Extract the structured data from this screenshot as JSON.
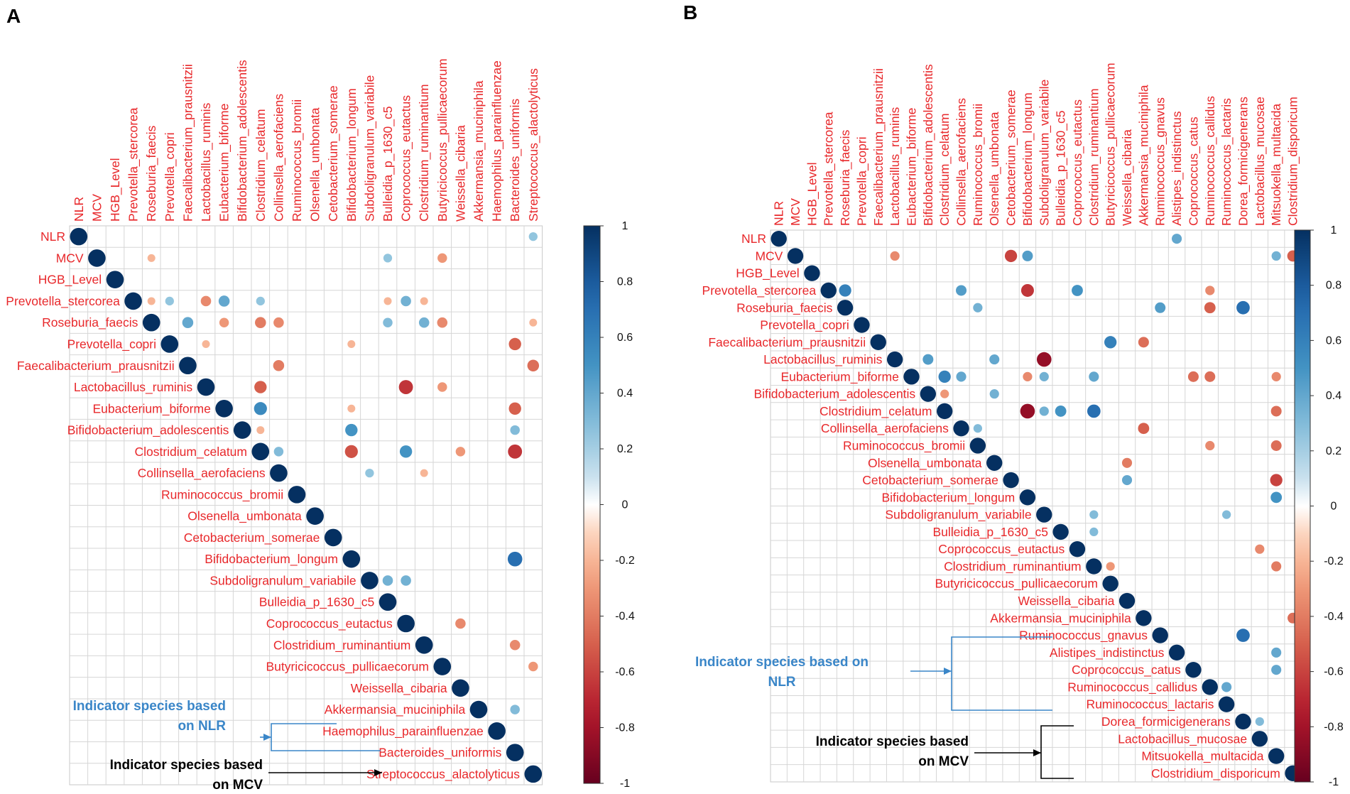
{
  "panels": [
    {
      "panel_label": "A",
      "chart_data": {
        "type": "correlogram",
        "title": "",
        "labels": [
          "NLR",
          "MCV",
          "HGB_Level",
          "Prevotella_stercorea",
          "Roseburia_faecis",
          "Prevotella_copri",
          "Faecalibacterium_prausnitzii",
          "Lactobacillus_ruminis",
          "Eubacterium_biforme",
          "Bifidobacterium_adolescentis",
          "Clostridium_celatum",
          "Collinsella_aerofaciens",
          "Ruminococcus_bromii",
          "Olsenella_umbonata",
          "Cetobacterium_somerae",
          "Bifidobacterium_longum",
          "Subdoligranulum_variabile",
          "Bulleidia_p_1630_c5",
          "Coprococcus_eutactus",
          "Clostridium_ruminantium",
          "Butyricicoccus_pullicaecorum",
          "Weissella_cibaria",
          "Akkermansia_muciniphila",
          "Haemophilus_parainfluenzae",
          "Bacteroides_uniformis",
          "Streptococcus_alactolyticus"
        ],
        "correlations": [
          [
            0,
            25,
            0.25
          ],
          [
            1,
            4,
            -0.2
          ],
          [
            1,
            17,
            0.25
          ],
          [
            1,
            20,
            -0.3
          ],
          [
            3,
            4,
            -0.2
          ],
          [
            3,
            5,
            0.25
          ],
          [
            3,
            7,
            -0.35
          ],
          [
            3,
            8,
            0.4
          ],
          [
            3,
            10,
            0.25
          ],
          [
            3,
            17,
            -0.2
          ],
          [
            3,
            18,
            0.35
          ],
          [
            3,
            19,
            -0.2
          ],
          [
            4,
            6,
            0.4
          ],
          [
            4,
            8,
            -0.3
          ],
          [
            4,
            10,
            -0.4
          ],
          [
            4,
            11,
            -0.35
          ],
          [
            4,
            17,
            0.3
          ],
          [
            4,
            19,
            0.35
          ],
          [
            4,
            20,
            -0.35
          ],
          [
            4,
            25,
            -0.2
          ],
          [
            5,
            7,
            -0.2
          ],
          [
            5,
            15,
            -0.2
          ],
          [
            5,
            24,
            -0.5
          ],
          [
            6,
            11,
            -0.4
          ],
          [
            6,
            25,
            -0.45
          ],
          [
            7,
            10,
            -0.5
          ],
          [
            7,
            18,
            -0.65
          ],
          [
            7,
            20,
            -0.3
          ],
          [
            8,
            10,
            0.55
          ],
          [
            8,
            15,
            -0.2
          ],
          [
            8,
            24,
            -0.5
          ],
          [
            9,
            10,
            -0.2
          ],
          [
            9,
            15,
            0.5
          ],
          [
            9,
            24,
            0.3
          ],
          [
            10,
            11,
            0.3
          ],
          [
            10,
            15,
            -0.55
          ],
          [
            10,
            18,
            0.5
          ],
          [
            10,
            21,
            -0.3
          ],
          [
            10,
            24,
            -0.65
          ],
          [
            11,
            16,
            0.25
          ],
          [
            11,
            19,
            -0.2
          ],
          [
            15,
            24,
            0.7
          ],
          [
            16,
            17,
            0.35
          ],
          [
            16,
            18,
            0.35
          ],
          [
            18,
            21,
            -0.35
          ],
          [
            19,
            24,
            -0.35
          ],
          [
            20,
            25,
            -0.3
          ],
          [
            22,
            24,
            0.3
          ]
        ],
        "colorbar": {
          "min": -1,
          "max": 1,
          "ticks": [
            "1",
            "0.8",
            "0.6",
            "0.4",
            "0.2",
            "0",
            "-0.2",
            "-0.4",
            "-0.6",
            "-0.8",
            "-1"
          ]
        }
      },
      "annotations": [
        {
          "lines": [
            "Indicator species based",
            "on NLR"
          ],
          "color": "#3a86c8"
        },
        {
          "lines": [
            "Indicator species based",
            "on MCV"
          ],
          "color": "#000000"
        }
      ]
    },
    {
      "panel_label": "B",
      "chart_data": {
        "type": "correlogram",
        "title": "",
        "labels": [
          "NLR",
          "MCV",
          "HGB_Level",
          "Prevotella_stercorea",
          "Roseburia_faecis",
          "Prevotella_copri",
          "Faecalibacterium_prausnitzii",
          "Lactobacillus_ruminis",
          "Eubacterium_biforme",
          "Bifidobacterium_adolescentis",
          "Clostridium_celatum",
          "Collinsella_aerofaciens",
          "Ruminococcus_bromii",
          "Olsenella_umbonata",
          "Cetobacterium_somerae",
          "Bifidobacterium_longum",
          "Subdoligranulum_variabile",
          "Bulleidia_p_1630_c5",
          "Coprococcus_eutactus",
          "Clostridium_ruminantium",
          "Butyricicoccus_pullicaecorum",
          "Weissella_cibaria",
          "Akkermansia_muciniphila",
          "Ruminococcus_gnavus",
          "Alistipes_indistinctus",
          "Coprococcus_catus",
          "Ruminococcus_callidus",
          "Ruminococcus_lactaris",
          "Dorea_formicigenerans",
          "Lactobacillus_mucosae",
          "Mitsuokella_multacida",
          "Clostridium_disporicum"
        ],
        "correlations": [
          [
            0,
            24,
            0.4
          ],
          [
            1,
            7,
            -0.35
          ],
          [
            1,
            14,
            -0.6
          ],
          [
            1,
            15,
            0.45
          ],
          [
            1,
            30,
            0.35
          ],
          [
            1,
            31,
            -0.5
          ],
          [
            3,
            4,
            0.6
          ],
          [
            3,
            11,
            0.45
          ],
          [
            3,
            15,
            -0.65
          ],
          [
            3,
            18,
            0.5
          ],
          [
            3,
            26,
            -0.35
          ],
          [
            4,
            12,
            0.35
          ],
          [
            4,
            23,
            0.45
          ],
          [
            4,
            26,
            -0.5
          ],
          [
            4,
            28,
            0.7
          ],
          [
            6,
            20,
            0.6
          ],
          [
            6,
            22,
            -0.45
          ],
          [
            7,
            9,
            0.45
          ],
          [
            7,
            13,
            0.4
          ],
          [
            7,
            16,
            -0.85
          ],
          [
            8,
            10,
            0.6
          ],
          [
            8,
            11,
            0.4
          ],
          [
            8,
            15,
            -0.35
          ],
          [
            8,
            16,
            0.35
          ],
          [
            8,
            19,
            0.4
          ],
          [
            8,
            25,
            -0.45
          ],
          [
            8,
            26,
            -0.45
          ],
          [
            8,
            30,
            -0.35
          ],
          [
            9,
            10,
            -0.3
          ],
          [
            9,
            13,
            0.35
          ],
          [
            10,
            15,
            -0.85
          ],
          [
            10,
            16,
            0.35
          ],
          [
            10,
            17,
            0.5
          ],
          [
            10,
            19,
            0.7
          ],
          [
            10,
            30,
            -0.45
          ],
          [
            11,
            12,
            0.3
          ],
          [
            11,
            22,
            -0.5
          ],
          [
            12,
            26,
            -0.35
          ],
          [
            12,
            30,
            -0.45
          ],
          [
            13,
            21,
            -0.4
          ],
          [
            14,
            21,
            0.4
          ],
          [
            14,
            30,
            -0.6
          ],
          [
            15,
            30,
            0.5
          ],
          [
            16,
            19,
            0.3
          ],
          [
            16,
            27,
            0.3
          ],
          [
            17,
            19,
            0.3
          ],
          [
            18,
            29,
            -0.35
          ],
          [
            19,
            20,
            -0.3
          ],
          [
            19,
            30,
            -0.4
          ],
          [
            22,
            31,
            -0.45
          ],
          [
            23,
            28,
            0.7
          ],
          [
            24,
            30,
            0.4
          ],
          [
            25,
            30,
            0.4
          ],
          [
            26,
            27,
            0.4
          ],
          [
            28,
            29,
            0.3
          ]
        ],
        "colorbar": {
          "min": -1,
          "max": 1,
          "ticks": [
            "1",
            "0.8",
            "0.6",
            "0.4",
            "0.2",
            "0",
            "-0.2",
            "-0.4",
            "-0.6",
            "-0.8",
            "-1"
          ]
        }
      },
      "annotations": [
        {
          "lines": [
            "Indicator species based on",
            "NLR"
          ],
          "color": "#3a86c8"
        },
        {
          "lines": [
            "Indicator species based",
            "on MCV"
          ],
          "color": "#000000"
        }
      ]
    }
  ]
}
